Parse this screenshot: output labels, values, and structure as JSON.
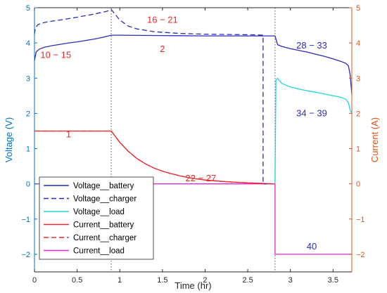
{
  "chart_data": {
    "type": "line",
    "xlabel": "Time (hr)",
    "ylabel_left": "Voltage (V)",
    "ylabel_right": "Current (A)",
    "xlim": [
      0,
      3.72
    ],
    "ylim_left": [
      -2.5,
      5
    ],
    "ylim_right": [
      -2.5,
      5
    ],
    "x_ticks": [
      "0",
      "0.5",
      "1",
      "1.5",
      "2",
      "2.5",
      "3",
      "3.5"
    ],
    "x_tick_values": [
      0,
      0.5,
      1,
      1.5,
      2,
      2.5,
      3,
      3.5
    ],
    "y_ticks_left": [
      "−2",
      "−1",
      "0",
      "1",
      "2",
      "3",
      "4",
      "5"
    ],
    "y_ticks_right": [
      "−2",
      "−1",
      "0",
      "1",
      "2",
      "3",
      "4",
      "5"
    ],
    "y_tick_values": [
      -2,
      -1,
      0,
      1,
      2,
      3,
      4,
      5
    ],
    "vertical_lines": [
      0.9,
      2.82
    ],
    "legend_placement": "bottom-left",
    "colors": {
      "left_axis": "#0072BD",
      "right_axis": "#D95319",
      "voltage_battery": "#2c2cb8",
      "voltage_charger": "#2c2cb8",
      "voltage_load": "#1fd6dc",
      "current_battery": "#e8282e",
      "current_charger": "#e8282e",
      "current_load": "#e02ad4",
      "annotation_red": "#e8282e",
      "annotation_blue": "#2c2cb8"
    },
    "series": [
      {
        "name": "Voltage__battery",
        "axis": "left",
        "style": "solid",
        "x": [
          0,
          0.02,
          0.06,
          0.12,
          0.2,
          0.3,
          0.4,
          0.5,
          0.6,
          0.7,
          0.8,
          0.9,
          1.0,
          1.5,
          2.0,
          2.5,
          2.7,
          2.8,
          2.82,
          2.85,
          2.9,
          3.0,
          3.1,
          3.2,
          3.3,
          3.4,
          3.5,
          3.6,
          3.65,
          3.68,
          3.7,
          3.72
        ],
        "y": [
          3.5,
          3.75,
          3.83,
          3.88,
          3.92,
          3.96,
          4.0,
          4.03,
          4.07,
          4.11,
          4.16,
          4.22,
          4.22,
          4.21,
          4.2,
          4.2,
          4.2,
          4.2,
          4.2,
          3.95,
          3.9,
          3.84,
          3.79,
          3.74,
          3.68,
          3.62,
          3.55,
          3.47,
          3.42,
          3.35,
          3.1,
          2.55
        ]
      },
      {
        "name": "Voltage__charger",
        "axis": "left",
        "style": "dashed",
        "x": [
          0,
          0.01,
          0.04,
          0.08,
          0.15,
          0.3,
          0.5,
          0.7,
          0.85,
          0.9,
          1.0,
          1.1,
          1.2,
          1.4,
          1.7,
          2.0,
          2.3,
          2.6,
          2.68,
          2.68,
          2.72
        ],
        "y": [
          4.25,
          4.42,
          4.52,
          4.56,
          4.6,
          4.65,
          4.73,
          4.82,
          4.9,
          4.95,
          4.65,
          4.48,
          4.4,
          4.32,
          4.27,
          4.25,
          4.24,
          4.23,
          4.22,
          0,
          0
        ]
      },
      {
        "name": "Voltage__load",
        "axis": "left",
        "style": "solid",
        "x": [
          2.82,
          2.83,
          2.85,
          2.9,
          3.0,
          3.1,
          3.2,
          3.3,
          3.4,
          3.5,
          3.6,
          3.65,
          3.68,
          3.7,
          3.72
        ],
        "y": [
          0,
          2.95,
          3.0,
          2.85,
          2.75,
          2.69,
          2.64,
          2.6,
          2.55,
          2.5,
          2.45,
          2.4,
          2.3,
          2.1,
          2.0
        ]
      },
      {
        "name": "Current__battery",
        "axis": "right",
        "style": "solid",
        "x": [
          0,
          0.9,
          1.0,
          1.1,
          1.2,
          1.3,
          1.4,
          1.5,
          1.6,
          1.7,
          1.8,
          1.9,
          2.0,
          2.2,
          2.4,
          2.6,
          2.7,
          2.82
        ],
        "y": [
          1.5,
          1.5,
          1.18,
          0.92,
          0.72,
          0.57,
          0.45,
          0.36,
          0.29,
          0.23,
          0.18,
          0.14,
          0.11,
          0.07,
          0.04,
          0.02,
          0.01,
          0
        ]
      },
      {
        "name": "Current__charger",
        "axis": "right",
        "style": "dashed",
        "x": [
          0,
          0.9,
          1.0,
          1.1,
          1.2,
          1.3,
          1.4,
          1.5,
          1.6,
          1.7,
          1.8,
          1.9,
          2.0,
          2.2,
          2.4,
          2.6,
          2.7,
          2.82
        ],
        "y": [
          1.5,
          1.5,
          1.18,
          0.92,
          0.72,
          0.57,
          0.45,
          0.36,
          0.29,
          0.23,
          0.18,
          0.14,
          0.11,
          0.07,
          0.04,
          0.02,
          0.01,
          0
        ]
      },
      {
        "name": "Current__load",
        "axis": "right",
        "style": "solid",
        "x": [
          0,
          2.82,
          2.82,
          3.72
        ],
        "y": [
          0,
          0,
          -2,
          -2
        ]
      }
    ],
    "annotations": [
      {
        "text": "10 − 15",
        "x": 0.25,
        "y": 3.65,
        "color": "red"
      },
      {
        "text": "16 − 21",
        "x": 1.5,
        "y": 4.65,
        "color": "red"
      },
      {
        "text": "2",
        "x": 1.5,
        "y": 3.82,
        "color": "red"
      },
      {
        "text": "28 − 33",
        "x": 3.25,
        "y": 3.92,
        "color": "blue"
      },
      {
        "text": "34 − 39",
        "x": 3.25,
        "y": 2.0,
        "color": "blue"
      },
      {
        "text": "1",
        "x": 0.4,
        "y": 1.4,
        "color": "red"
      },
      {
        "text": "22 − 27",
        "x": 1.95,
        "y": 0.15,
        "color": "red"
      },
      {
        "text": "40",
        "x": 3.25,
        "y": -1.78,
        "color": "blue"
      }
    ]
  }
}
